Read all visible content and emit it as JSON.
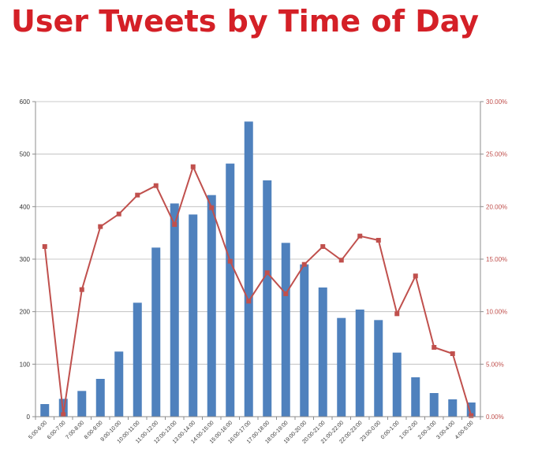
{
  "page": {
    "title": "User Tweets by Time of Day"
  },
  "chart_data": {
    "type": "bar",
    "title": "User Tweets by Time of Day",
    "categories": [
      "5:00-6:00",
      "6:00-7:00",
      "7:00-8:00",
      "8:00-9:00",
      "9:00-10:00",
      "10:00-11:00",
      "11:00-12:00",
      "12:00-13:00",
      "13:00-14:00",
      "14:00-15:00",
      "15:00-16:00",
      "16:00-17:00",
      "17:00-18:00",
      "18:00-19:00",
      "19:00-20:00",
      "20:00-21:00",
      "21:00-22:00",
      "22:00-23:00",
      "23:00-0:00",
      "0:00-1:00",
      "1:00-2:00",
      "2:00-3:00",
      "3:00-4:00",
      "4:00-5:00"
    ],
    "series": [
      {
        "kind": "bar",
        "axis": "left",
        "color": "#4f81bd",
        "values": [
          24,
          34,
          49,
          72,
          124,
          217,
          322,
          406,
          385,
          422,
          482,
          562,
          450,
          331,
          290,
          246,
          188,
          204,
          184,
          122,
          75,
          45,
          33,
          27
        ]
      },
      {
        "kind": "line",
        "axis": "right",
        "color": "#c0504d",
        "values": [
          16.2,
          0.2,
          12.1,
          18.1,
          19.3,
          21.1,
          22.0,
          18.3,
          23.8,
          19.9,
          14.8,
          11.0,
          13.7,
          11.7,
          14.5,
          16.2,
          14.9,
          17.2,
          16.8,
          9.8,
          13.4,
          6.6,
          6.0,
          0.1
        ]
      }
    ],
    "y_left": {
      "lim": [
        0,
        600
      ],
      "ticks": [
        "0",
        "100",
        "200",
        "300",
        "400",
        "500",
        "600"
      ]
    },
    "y_right": {
      "lim": [
        0,
        30
      ],
      "ticks": [
        "0.00%",
        "5.00%",
        "10.00%",
        "15.00%",
        "20.00%",
        "25.00%",
        "30.00%"
      ]
    },
    "grid": true,
    "legend": "none"
  }
}
